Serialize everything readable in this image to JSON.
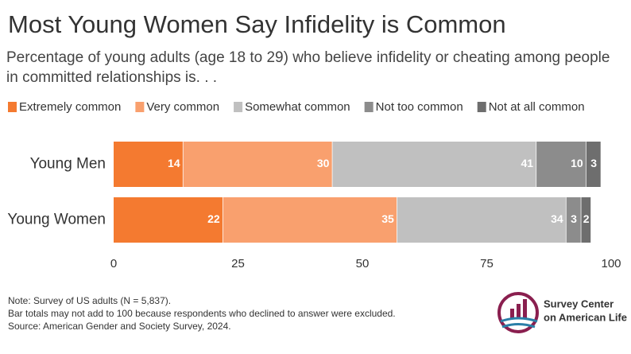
{
  "chart_data": {
    "type": "stacked-bar-horizontal",
    "title": "Most Young Women Say Infidelity is Common",
    "subtitle": "Percentage of young adults (age 18 to 29) who believe infidelity or cheating among people in committed relationships is. . .",
    "categories": [
      "Young Men",
      "Young Women"
    ],
    "series": [
      {
        "name": "Extremely common",
        "color": "#f47a30",
        "values": [
          14,
          22
        ]
      },
      {
        "name": "Very common",
        "color": "#f9a06e",
        "values": [
          30,
          35
        ]
      },
      {
        "name": "Somewhat common",
        "color": "#c0c0c0",
        "values": [
          41,
          34
        ]
      },
      {
        "name": "Not too common",
        "color": "#8c8c8c",
        "values": [
          10,
          3
        ]
      },
      {
        "name": "Not at all common",
        "color": "#6e6e6e",
        "values": [
          3,
          2
        ]
      }
    ],
    "xlim": [
      0,
      100
    ],
    "xticks": [
      0,
      25,
      50,
      75,
      100
    ],
    "legend": "top-left",
    "notes": [
      "Note: Survey of US adults (N = 5,837).",
      "Bar totals may not add to 100 because respondents who declined to answer were excluded.",
      "Source: American Gender and Society Survey, 2024."
    ]
  },
  "logo": {
    "line1": "Survey Center",
    "line2": "on American Life"
  }
}
